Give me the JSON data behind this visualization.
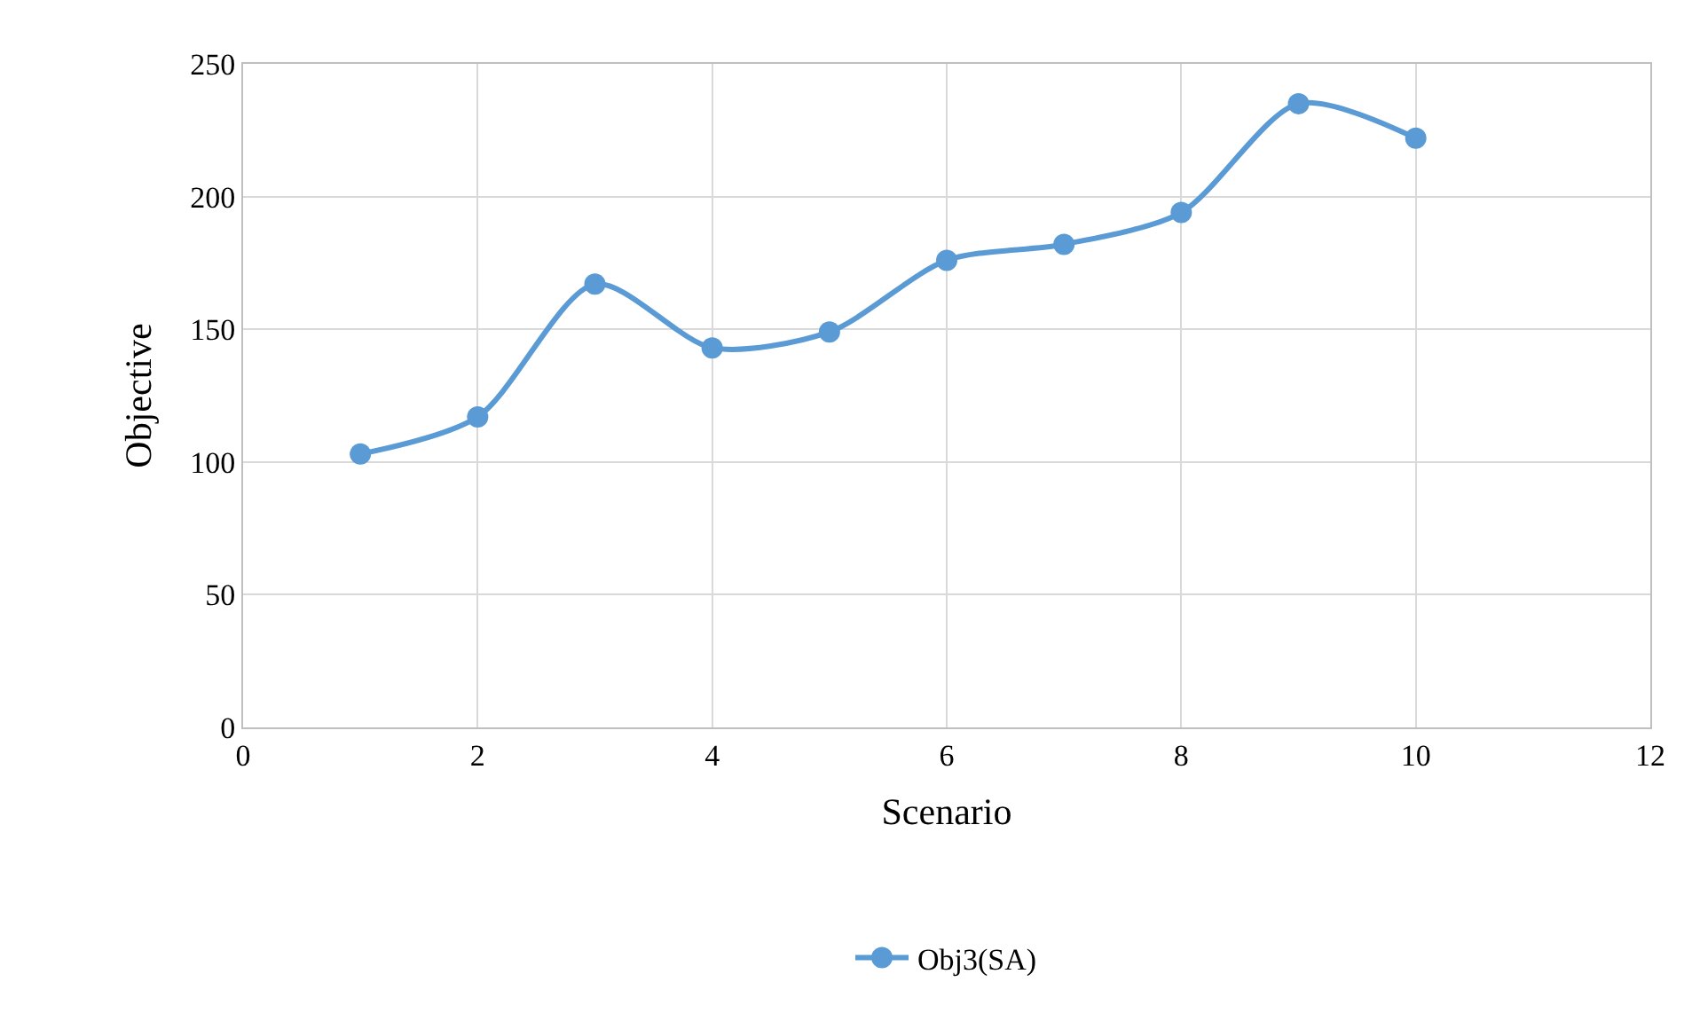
{
  "chart_data": {
    "type": "line",
    "xlabel": "Scenario",
    "ylabel": "Objective",
    "x": [
      1,
      2,
      3,
      4,
      5,
      6,
      7,
      8,
      9,
      10
    ],
    "series": [
      {
        "name": "Obj3(SA)",
        "color": "#5b9bd5",
        "values": [
          103,
          117,
          167,
          143,
          149,
          176,
          182,
          194,
          235,
          222
        ]
      }
    ],
    "xlim": [
      0,
      12
    ],
    "xticks": [
      0,
      2,
      4,
      6,
      8,
      10,
      12
    ],
    "ylim": [
      0,
      250
    ],
    "yticks": [
      0,
      50,
      100,
      150,
      200,
      250
    ],
    "grid": true,
    "legend": "bottom",
    "marker": "circle",
    "line_style": "solid"
  }
}
